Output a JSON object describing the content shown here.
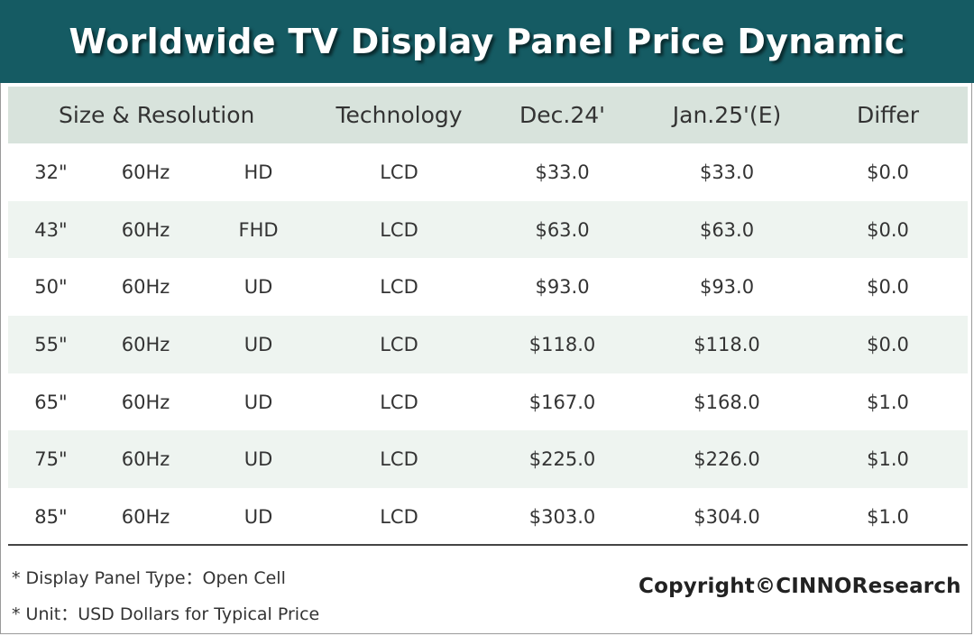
{
  "title": "Worldwide TV Display Panel Price Dynamic",
  "colors": {
    "title_bg": "#155b63",
    "title_fg": "#ffffff",
    "header_bg": "#d8e3dc",
    "stripe_bg": "#eef4f0"
  },
  "chart_data": {
    "type": "table",
    "columns": [
      "Size & Resolution",
      "Technology",
      "Dec.24'",
      "Jan.25'(E)",
      "Differ"
    ],
    "rows": [
      {
        "size": "32\"",
        "refresh": "60Hz",
        "resolution": "HD",
        "technology": "LCD",
        "dec24": "$33.0",
        "jan25": "$33.0",
        "differ": "$0.0"
      },
      {
        "size": "43\"",
        "refresh": "60Hz",
        "resolution": "FHD",
        "technology": "LCD",
        "dec24": "$63.0",
        "jan25": "$63.0",
        "differ": "$0.0"
      },
      {
        "size": "50\"",
        "refresh": "60Hz",
        "resolution": "UD",
        "technology": "LCD",
        "dec24": "$93.0",
        "jan25": "$93.0",
        "differ": "$0.0"
      },
      {
        "size": "55\"",
        "refresh": "60Hz",
        "resolution": "UD",
        "technology": "LCD",
        "dec24": "$118.0",
        "jan25": "$118.0",
        "differ": "$0.0"
      },
      {
        "size": "65\"",
        "refresh": "60Hz",
        "resolution": "UD",
        "technology": "LCD",
        "dec24": "$167.0",
        "jan25": "$168.0",
        "differ": "$1.0"
      },
      {
        "size": "75\"",
        "refresh": "60Hz",
        "resolution": "UD",
        "technology": "LCD",
        "dec24": "$225.0",
        "jan25": "$226.0",
        "differ": "$1.0"
      },
      {
        "size": "85\"",
        "refresh": "60Hz",
        "resolution": "UD",
        "technology": "LCD",
        "dec24": "$303.0",
        "jan25": "$304.0",
        "differ": "$1.0"
      }
    ]
  },
  "notes": [
    "* Display Panel Type：Open Cell",
    "* Unit：USD Dollars for Typical Price"
  ],
  "copyright": "Copyright©CINNOResearch"
}
